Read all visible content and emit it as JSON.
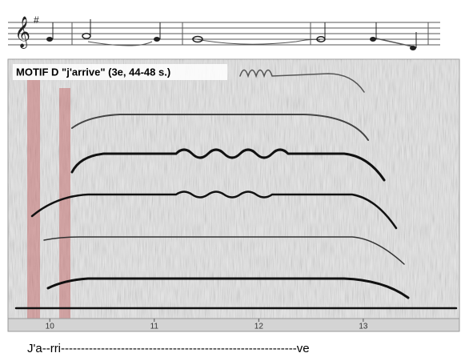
{
  "caption": "MOTIF D \"j'arrive\" (3e, 44-48 s.)",
  "axis": {
    "xlim": [
      9.6,
      13.92
    ],
    "ticks": [
      10,
      11,
      12,
      13
    ]
  },
  "lyrics": "J'a--rri-----------------------------------------------------------ve"
}
